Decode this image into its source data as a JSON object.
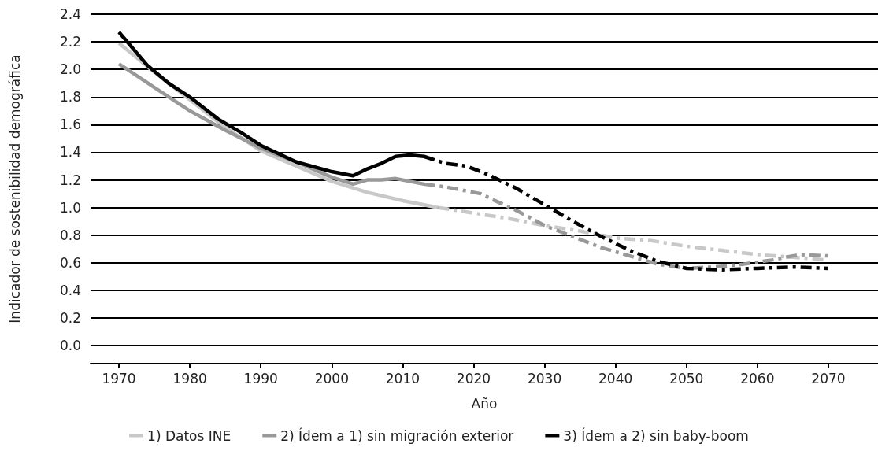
{
  "chart_data": {
    "type": "line",
    "xlabel": "Año",
    "ylabel": "Indicador de sostenibilidad demográfica",
    "xlim": [
      1966,
      2077
    ],
    "xticks": [
      1970,
      1980,
      1990,
      2000,
      2010,
      2020,
      2030,
      2040,
      2050,
      2060,
      2070
    ],
    "ylim": [
      -0.13,
      2.4
    ],
    "yticks": [
      {
        "value": 0,
        "label": "0.0"
      },
      {
        "value": 0.2,
        "label": "0.2"
      },
      {
        "value": 0.4,
        "label": "0.4"
      },
      {
        "value": 0.6,
        "label": "0.6"
      },
      {
        "value": 0.8,
        "label": "0.8"
      },
      {
        "value": 1,
        "label": "1.0"
      },
      {
        "value": 1.2,
        "label": "1.2"
      },
      {
        "value": 1.4,
        "label": "1.4"
      },
      {
        "value": 1.6,
        "label": "1.6"
      },
      {
        "value": 1.8,
        "label": "1.8"
      },
      {
        "value": 2,
        "label": "2.0"
      },
      {
        "value": 2.2,
        "label": "2.2"
      },
      {
        "value": 2.4,
        "label": "2.4"
      }
    ],
    "grid": "y",
    "legend": "bottom",
    "marker": "none",
    "series": [
      {
        "name": "1) Datos INE",
        "color": "#c8c8c8",
        "line_style": "solid",
        "x": [
          1970,
          1975,
          1980,
          1985,
          1990,
          1995,
          2000,
          2005,
          2010,
          2015
        ],
        "values": [
          2.19,
          1.98,
          1.78,
          1.58,
          1.41,
          1.3,
          1.19,
          1.11,
          1.05,
          1.0
        ]
      },
      {
        "name": "2) Ídem a 1) sin migración exterior",
        "color": "#999999",
        "line_style": "solid",
        "x": [
          1970,
          1975,
          1980,
          1985,
          1990,
          1995,
          2000,
          2003,
          2005,
          2007,
          2009,
          2011,
          2013
        ],
        "values": [
          2.04,
          1.87,
          1.7,
          1.56,
          1.43,
          1.33,
          1.22,
          1.17,
          1.2,
          1.2,
          1.21,
          1.19,
          1.17
        ]
      },
      {
        "name": "3) Ídem a 2) sin baby-boom",
        "color": "#000000",
        "line_style": "solid",
        "x": [
          1970,
          1974,
          1977,
          1980,
          1984,
          1987,
          1990,
          1995,
          2000,
          2003,
          2005,
          2007,
          2009,
          2011,
          2013
        ],
        "values": [
          2.27,
          2.03,
          1.9,
          1.8,
          1.64,
          1.55,
          1.45,
          1.33,
          1.26,
          1.23,
          1.28,
          1.32,
          1.37,
          1.38,
          1.37
        ]
      },
      {
        "color": "#c8c8c8",
        "line_style": "dashed",
        "x": [
          2015,
          2020,
          2025,
          2030,
          2035,
          2040,
          2045,
          2050,
          2055,
          2060,
          2065,
          2070
        ],
        "values": [
          1.0,
          0.96,
          0.92,
          0.87,
          0.83,
          0.78,
          0.76,
          0.72,
          0.69,
          0.66,
          0.64,
          0.62
        ]
      },
      {
        "color": "#999999",
        "line_style": "dashed",
        "x": [
          2013,
          2016,
          2019,
          2021,
          2023,
          2026,
          2030,
          2034,
          2038,
          2042,
          2046,
          2050,
          2054,
          2058,
          2062,
          2066,
          2070
        ],
        "values": [
          1.17,
          1.15,
          1.12,
          1.1,
          1.05,
          0.98,
          0.87,
          0.79,
          0.71,
          0.65,
          0.59,
          0.56,
          0.57,
          0.59,
          0.62,
          0.66,
          0.65
        ]
      },
      {
        "color": "#000000",
        "line_style": "dashed",
        "x": [
          2013,
          2016,
          2019,
          2022,
          2026,
          2030,
          2034,
          2038,
          2042,
          2046,
          2050,
          2055,
          2060,
          2065,
          2070
        ],
        "values": [
          1.37,
          1.32,
          1.3,
          1.24,
          1.14,
          1.02,
          0.9,
          0.79,
          0.69,
          0.61,
          0.56,
          0.55,
          0.56,
          0.57,
          0.56
        ]
      }
    ]
  }
}
